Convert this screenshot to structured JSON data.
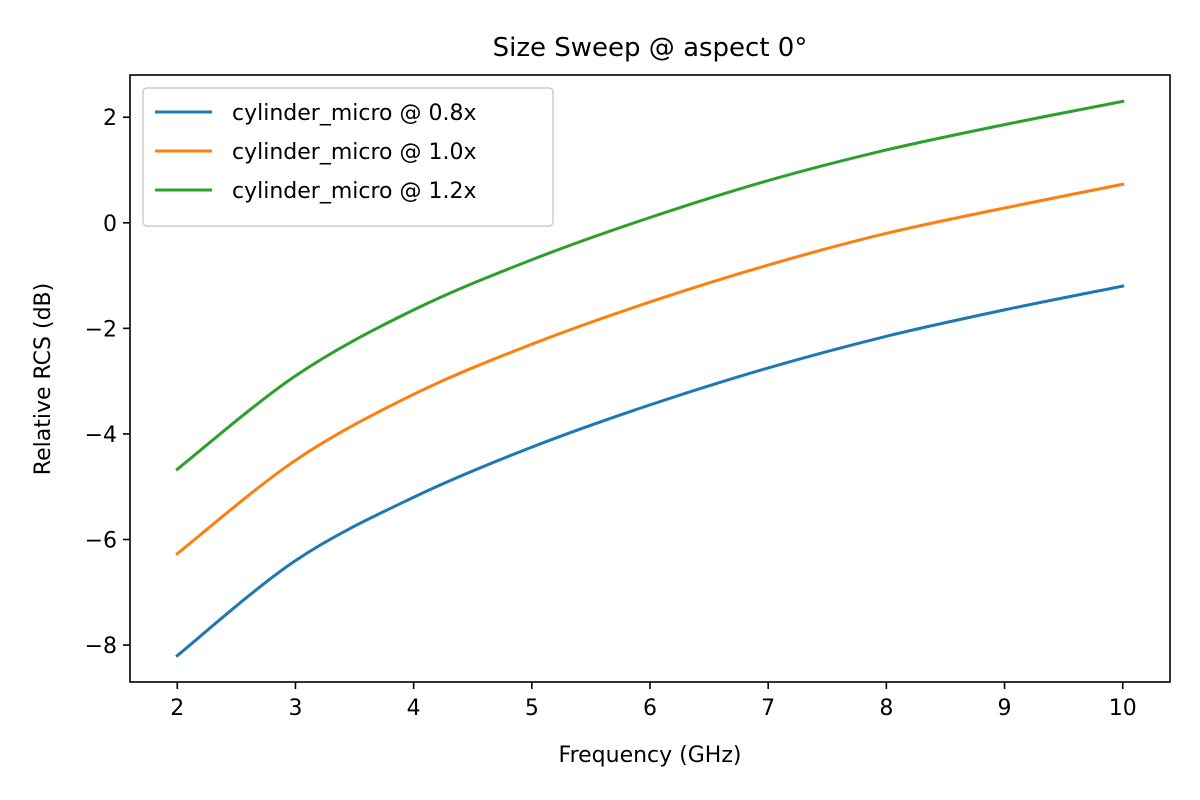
{
  "chart_data": {
    "type": "line",
    "title": "Size Sweep @ aspect 0°",
    "xlabel": "Frequency (GHz)",
    "ylabel": "Relative RCS (dB)",
    "xlim": [
      1.6,
      10.4
    ],
    "ylim": [
      -8.7,
      2.8
    ],
    "xticks": [
      2,
      3,
      4,
      5,
      6,
      7,
      8,
      9,
      10
    ],
    "xtick_labels": [
      "2",
      "3",
      "4",
      "5",
      "6",
      "7",
      "8",
      "9",
      "10"
    ],
    "yticks": [
      -8,
      -6,
      -4,
      -2,
      0,
      2
    ],
    "ytick_labels": [
      "−8",
      "−6",
      "−4",
      "−2",
      "0",
      "2"
    ],
    "grid": false,
    "legend_position": "top-left",
    "x": [
      2,
      3,
      4,
      5,
      6,
      7,
      8,
      9,
      10
    ],
    "series": [
      {
        "name": "cylinder_micro @ 0.8x",
        "color": "#1f77b4",
        "values": [
          -8.2,
          -6.4,
          -5.2,
          -4.25,
          -3.45,
          -2.75,
          -2.15,
          -1.65,
          -1.2
        ]
      },
      {
        "name": "cylinder_micro @ 1.0x",
        "color": "#ff7f0e",
        "values": [
          -6.27,
          -4.5,
          -3.25,
          -2.3,
          -1.5,
          -0.8,
          -0.2,
          0.28,
          0.73
        ]
      },
      {
        "name": "cylinder_micro @ 1.2x",
        "color": "#2ca02c",
        "values": [
          -4.67,
          -2.9,
          -1.65,
          -0.7,
          0.1,
          0.8,
          1.38,
          1.86,
          2.3
        ]
      }
    ]
  }
}
